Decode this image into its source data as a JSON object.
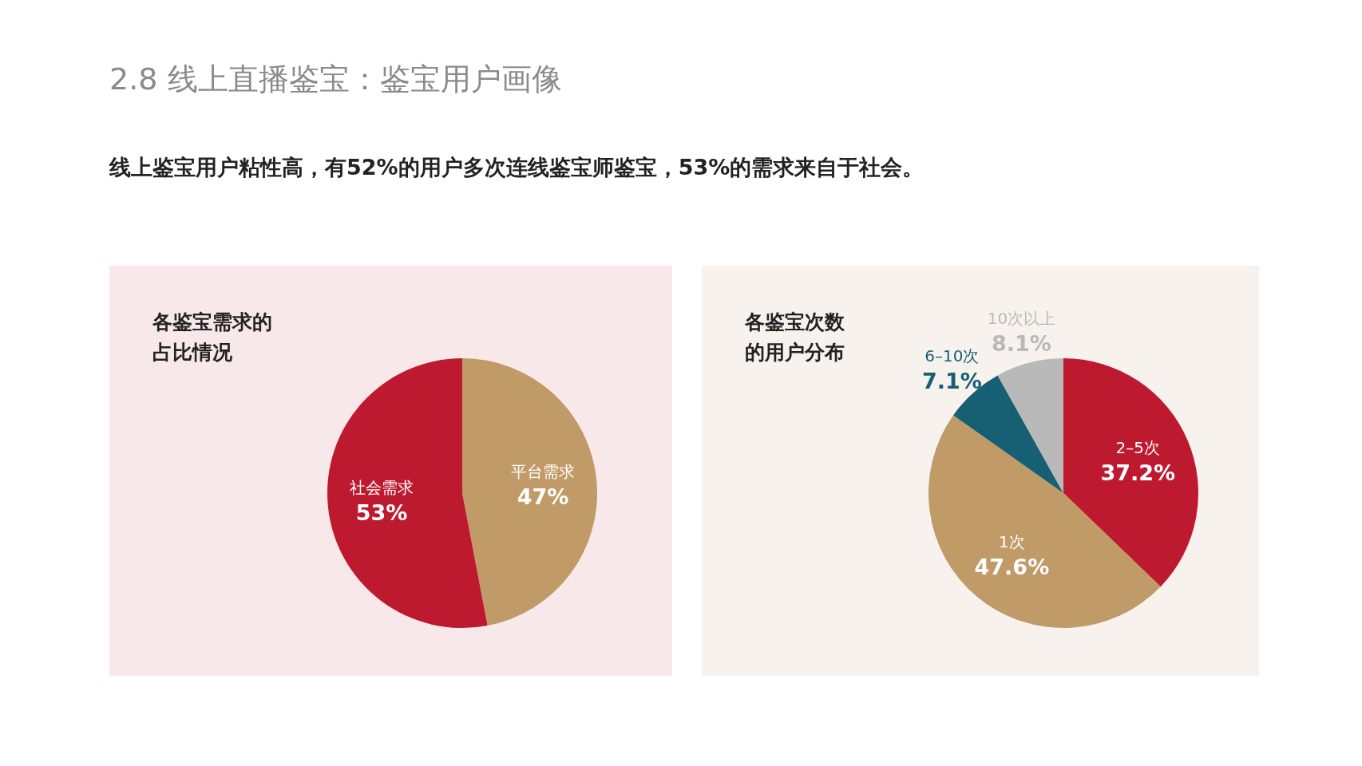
{
  "chart_data": [
    {
      "type": "pie",
      "title": "各鉴宝需求的占比情况",
      "annotations": [
        "2.8 线上直播鉴宝：鉴宝用户画像",
        "线上鉴宝用户粘性高，有52%的用户多次连线鉴宝师鉴宝，53%的需求来自于社会。"
      ],
      "categories": [
        "平台需求",
        "社会需求"
      ],
      "values": [
        47,
        53
      ],
      "value_labels": [
        "47%",
        "53%"
      ],
      "colors": [
        "#c09a67",
        "#be1a2f"
      ]
    },
    {
      "type": "pie",
      "title": "各鉴宝次数的用户分布",
      "categories": [
        "2–5次",
        "1次",
        "6–10次",
        "10次以上"
      ],
      "values": [
        37.2,
        47.6,
        7.1,
        8.1
      ],
      "value_labels": [
        "37.2%",
        "47.6%",
        "7.1%",
        "8.1%"
      ],
      "colors": [
        "#be1a2f",
        "#c09a67",
        "#175f73",
        "#b9b9b9"
      ]
    }
  ]
}
